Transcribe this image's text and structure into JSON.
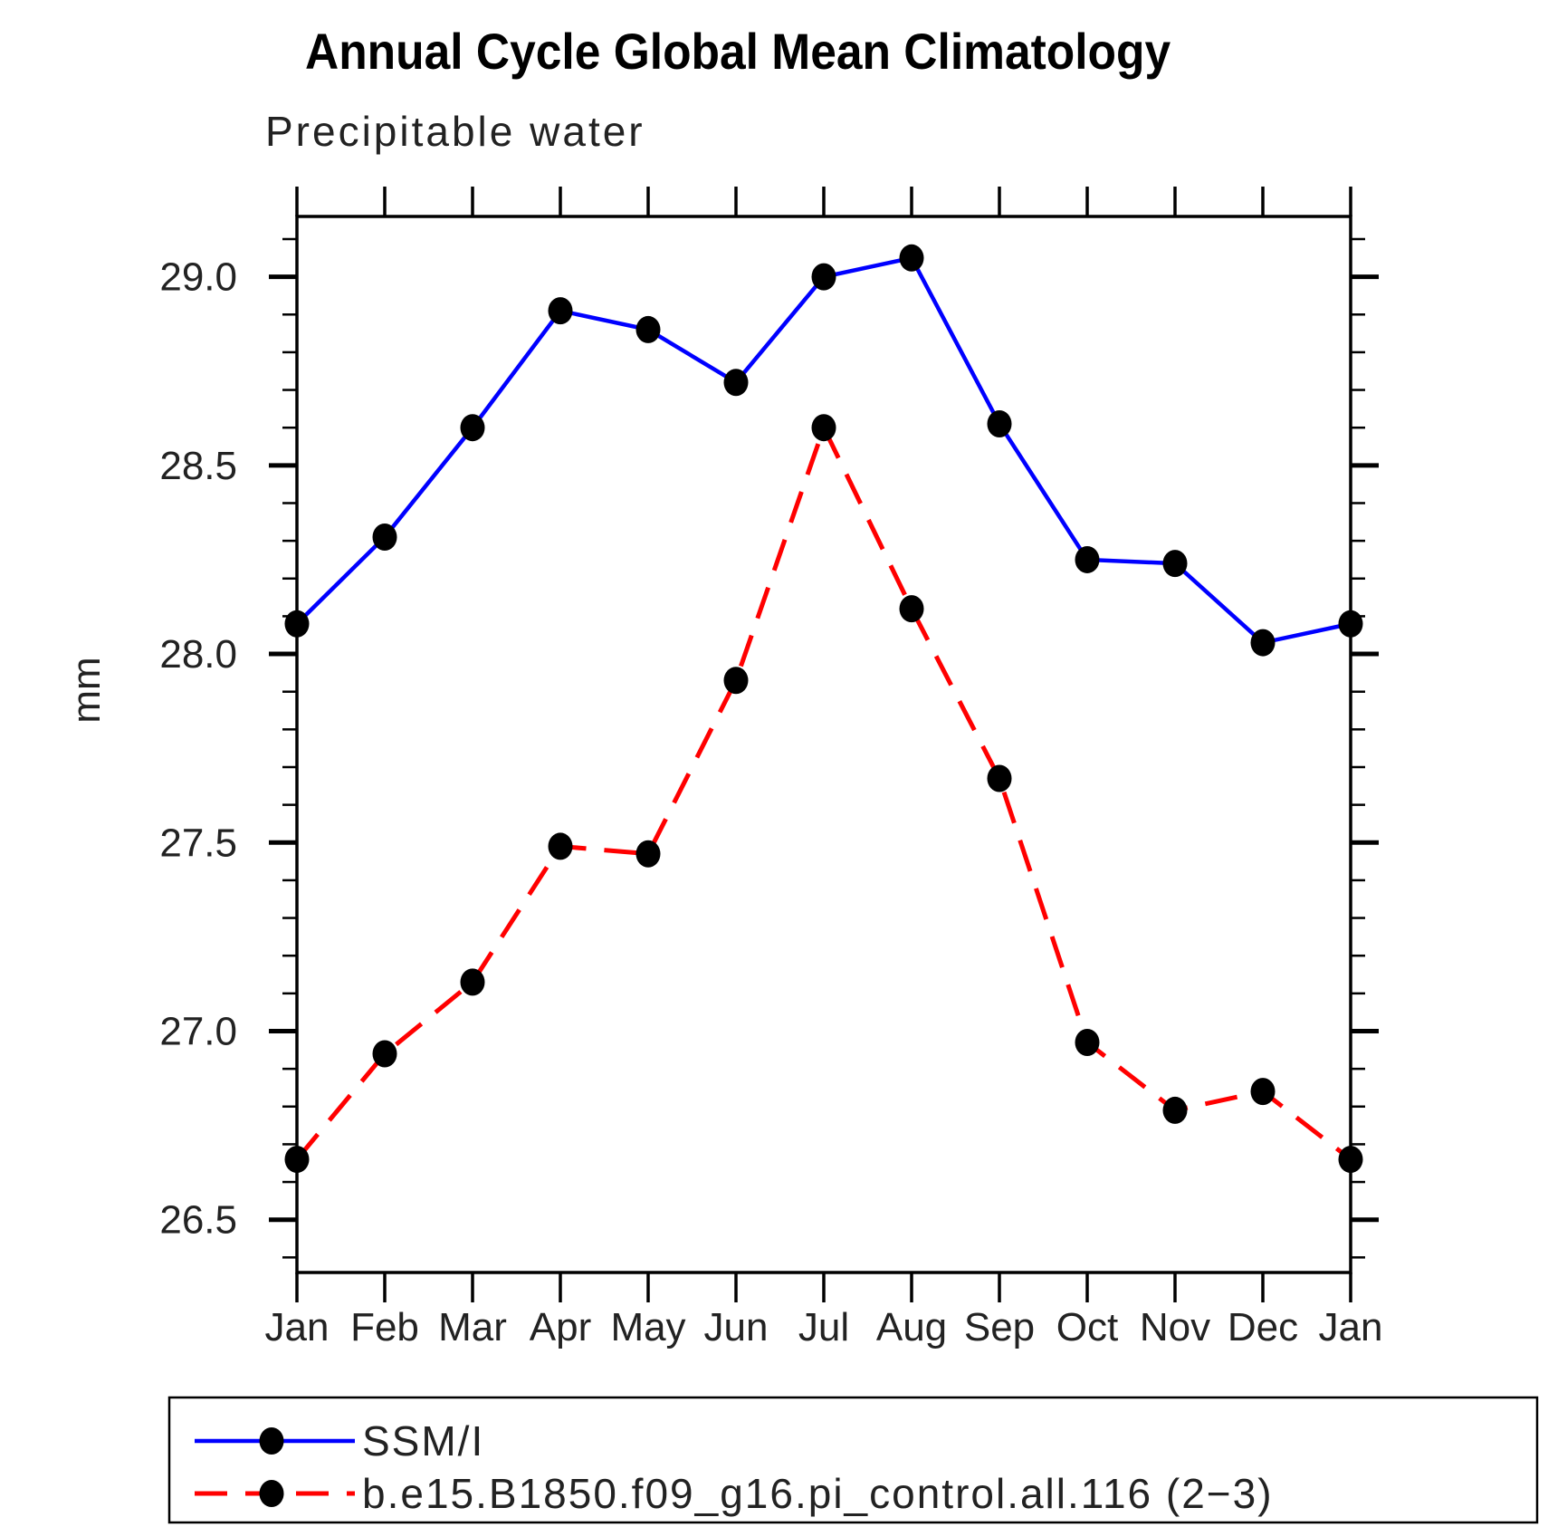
{
  "page": {
    "title": "Annual Cycle Global Mean Climatology",
    "subtitle": "Precipitable water"
  },
  "chart_data": {
    "type": "line",
    "title": "Annual Cycle Global Mean Climatology",
    "subtitle": "Precipitable water",
    "xlabel": "",
    "ylabel": "mm",
    "categories": [
      "Jan",
      "Feb",
      "Mar",
      "Apr",
      "May",
      "Jun",
      "Jul",
      "Aug",
      "Sep",
      "Oct",
      "Nov",
      "Dec",
      "Jan"
    ],
    "y_ticks": [
      26.5,
      27.0,
      27.5,
      28.0,
      28.5,
      29.0
    ],
    "y_tick_labels": [
      "26.5",
      "27.0",
      "27.5",
      "28.0",
      "28.5",
      "29.0"
    ],
    "y_minor_step": 0.1,
    "ylim": [
      26.36,
      29.16
    ],
    "grid": false,
    "legend_position": "bottom",
    "marker_color": "#000000",
    "series": [
      {
        "name": "SSM/I",
        "color": "#0000ff",
        "style": "solid",
        "marker": "black-dot",
        "values": [
          28.08,
          28.31,
          28.6,
          28.91,
          28.86,
          28.72,
          29.0,
          29.05,
          28.61,
          28.25,
          28.24,
          28.03,
          28.08
        ]
      },
      {
        "name": "b.e15.B1850.f09_g16.pi_control.all.116 (2−3)",
        "color": "#ff0000",
        "style": "dashed",
        "marker": "black-dot",
        "values": [
          26.66,
          26.94,
          27.13,
          27.49,
          27.47,
          27.93,
          28.6,
          28.12,
          27.67,
          26.97,
          26.79,
          26.84,
          26.66
        ]
      }
    ]
  }
}
